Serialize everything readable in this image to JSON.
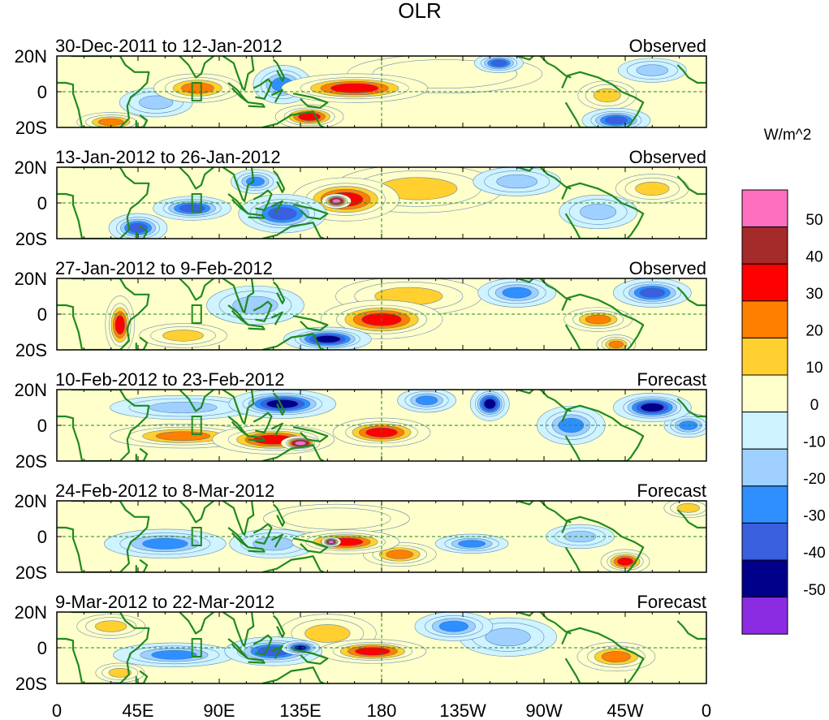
{
  "chart_data": {
    "type": "heatmap",
    "title": "OLR",
    "units": "W/m^2",
    "x_ticks": [
      "0",
      "45E",
      "90E",
      "135E",
      "180",
      "135W",
      "90W",
      "45W",
      "0"
    ],
    "x_range_deg_east": [
      0,
      360
    ],
    "y_ticks": [
      "20N",
      "0",
      "20S"
    ],
    "y_range_deg": [
      -20,
      20
    ],
    "colorbar": {
      "labels": [
        "50",
        "40",
        "30",
        "20",
        "10",
        "0",
        "-10",
        "-20",
        "-30",
        "-40",
        "-50"
      ],
      "levels": [
        50,
        40,
        30,
        20,
        10,
        0,
        -10,
        -20,
        -30,
        -40,
        -50
      ],
      "colors": [
        "#ff6fbf",
        "#a52a2a",
        "#ff0000",
        "#ff7f00",
        "#ffd030",
        "#ffffcc",
        "#cff3ff",
        "#9fd0ff",
        "#2f8fff",
        "#3a60e0",
        "#00008b",
        "#8b2be2"
      ]
    },
    "panels": [
      {
        "period": "30-Dec-2011 to 12-Jan-2012",
        "kind": "Observed",
        "anomalies": [
          {
            "lon": 78,
            "lat": 2,
            "rx": 18,
            "ry": 6,
            "v": 28
          },
          {
            "lon": 165,
            "lat": 2,
            "rx": 30,
            "ry": 6,
            "v": 32
          },
          {
            "lon": 140,
            "lat": -14,
            "rx": 14,
            "ry": 5,
            "v": 35
          },
          {
            "lon": 30,
            "lat": -17,
            "rx": 14,
            "ry": 4,
            "v": 28
          },
          {
            "lon": 305,
            "lat": -2,
            "rx": 12,
            "ry": 6,
            "v": 18
          },
          {
            "lon": 245,
            "lat": 16,
            "rx": 10,
            "ry": 4,
            "v": -35
          },
          {
            "lon": 125,
            "lat": 4,
            "rx": 12,
            "ry": 8,
            "v": -28
          },
          {
            "lon": 55,
            "lat": -6,
            "rx": 15,
            "ry": 6,
            "v": -15
          },
          {
            "lon": 310,
            "lat": -16,
            "rx": 14,
            "ry": 5,
            "v": -30
          },
          {
            "lon": 330,
            "lat": 12,
            "rx": 14,
            "ry": 5,
            "v": -18
          },
          {
            "lon": 215,
            "lat": 10,
            "rx": 40,
            "ry": 8,
            "v": 8
          }
        ]
      },
      {
        "period": "13-Jan-2012 to 26-Jan-2012",
        "kind": "Observed",
        "anomalies": [
          {
            "lon": 160,
            "lat": 2,
            "rx": 22,
            "ry": 9,
            "v": 34
          },
          {
            "lon": 155,
            "lat": 1,
            "rx": 6,
            "ry": 3,
            "v": 52
          },
          {
            "lon": 200,
            "lat": 8,
            "rx": 35,
            "ry": 10,
            "v": 10
          },
          {
            "lon": 75,
            "lat": -3,
            "rx": 16,
            "ry": 5,
            "v": -38
          },
          {
            "lon": 125,
            "lat": -6,
            "rx": 18,
            "ry": 8,
            "v": -35
          },
          {
            "lon": 45,
            "lat": -14,
            "rx": 12,
            "ry": 6,
            "v": -30
          },
          {
            "lon": 110,
            "lat": 12,
            "rx": 10,
            "ry": 5,
            "v": -25
          },
          {
            "lon": 300,
            "lat": -5,
            "rx": 16,
            "ry": 7,
            "v": -12
          },
          {
            "lon": 255,
            "lat": 12,
            "rx": 18,
            "ry": 6,
            "v": -14
          },
          {
            "lon": 330,
            "lat": 8,
            "rx": 15,
            "ry": 6,
            "v": 10
          }
        ]
      },
      {
        "period": "27-Jan-2012 to 9-Feb-2012",
        "kind": "Observed",
        "anomalies": [
          {
            "lon": 180,
            "lat": -3,
            "rx": 25,
            "ry": 8,
            "v": 30
          },
          {
            "lon": 195,
            "lat": 10,
            "rx": 30,
            "ry": 8,
            "v": 12
          },
          {
            "lon": 35,
            "lat": -6,
            "rx": 6,
            "ry": 12,
            "v": 30
          },
          {
            "lon": 150,
            "lat": -14,
            "rx": 18,
            "ry": 5,
            "v": -48
          },
          {
            "lon": 110,
            "lat": 5,
            "rx": 20,
            "ry": 8,
            "v": -14
          },
          {
            "lon": 255,
            "lat": 12,
            "rx": 16,
            "ry": 6,
            "v": -22
          },
          {
            "lon": 330,
            "lat": 12,
            "rx": 16,
            "ry": 6,
            "v": -32
          },
          {
            "lon": 300,
            "lat": -3,
            "rx": 14,
            "ry": 5,
            "v": 22
          },
          {
            "lon": 310,
            "lat": -17,
            "rx": 8,
            "ry": 4,
            "v": 25
          },
          {
            "lon": 70,
            "lat": -12,
            "rx": 18,
            "ry": 5,
            "v": 12
          }
        ]
      },
      {
        "period": "10-Feb-2012 to 23-Feb-2012",
        "kind": "Forecast",
        "anomalies": [
          {
            "lon": 120,
            "lat": -8,
            "rx": 25,
            "ry": 6,
            "v": 36
          },
          {
            "lon": 135,
            "lat": -10,
            "rx": 8,
            "ry": 3,
            "v": 52
          },
          {
            "lon": 180,
            "lat": -4,
            "rx": 20,
            "ry": 6,
            "v": 34
          },
          {
            "lon": 70,
            "lat": -6,
            "rx": 30,
            "ry": 5,
            "v": 22
          },
          {
            "lon": 125,
            "lat": 12,
            "rx": 22,
            "ry": 6,
            "v": -40
          },
          {
            "lon": 240,
            "lat": 12,
            "rx": 8,
            "ry": 7,
            "v": -45
          },
          {
            "lon": 205,
            "lat": 14,
            "rx": 12,
            "ry": 5,
            "v": -28
          },
          {
            "lon": 330,
            "lat": 10,
            "rx": 16,
            "ry": 6,
            "v": -40
          },
          {
            "lon": 285,
            "lat": 0,
            "rx": 14,
            "ry": 8,
            "v": -22
          },
          {
            "lon": 70,
            "lat": 10,
            "rx": 30,
            "ry": 5,
            "v": -15
          },
          {
            "lon": 350,
            "lat": 0,
            "rx": 10,
            "ry": 5,
            "v": -20
          }
        ]
      },
      {
        "period": "24-Feb-2012 to 8-Mar-2012",
        "kind": "Forecast",
        "anomalies": [
          {
            "lon": 160,
            "lat": -3,
            "rx": 22,
            "ry": 5,
            "v": 32
          },
          {
            "lon": 152,
            "lat": -3,
            "rx": 4,
            "ry": 2,
            "v": 52
          },
          {
            "lon": 190,
            "lat": -10,
            "rx": 15,
            "ry": 5,
            "v": 20
          },
          {
            "lon": 315,
            "lat": -14,
            "rx": 10,
            "ry": 5,
            "v": 35
          },
          {
            "lon": 60,
            "lat": -4,
            "rx": 25,
            "ry": 6,
            "v": -28
          },
          {
            "lon": 120,
            "lat": -4,
            "rx": 18,
            "ry": 6,
            "v": -18
          },
          {
            "lon": 230,
            "lat": -4,
            "rx": 15,
            "ry": 4,
            "v": -22
          },
          {
            "lon": 290,
            "lat": 0,
            "rx": 14,
            "ry": 5,
            "v": -15
          },
          {
            "lon": 155,
            "lat": 10,
            "rx": 30,
            "ry": 6,
            "v": 8
          },
          {
            "lon": 350,
            "lat": 16,
            "rx": 10,
            "ry": 4,
            "v": 12
          }
        ]
      },
      {
        "period": "9-Mar-2012 to 22-Mar-2012",
        "kind": "Forecast",
        "anomalies": [
          {
            "lon": 175,
            "lat": -2,
            "rx": 22,
            "ry": 5,
            "v": 34
          },
          {
            "lon": 150,
            "lat": 8,
            "rx": 20,
            "ry": 8,
            "v": 15
          },
          {
            "lon": 120,
            "lat": -2,
            "rx": 20,
            "ry": 6,
            "v": -34
          },
          {
            "lon": 135,
            "lat": 0,
            "rx": 8,
            "ry": 3,
            "v": -45
          },
          {
            "lon": 65,
            "lat": -4,
            "rx": 25,
            "ry": 5,
            "v": -28
          },
          {
            "lon": 220,
            "lat": 12,
            "rx": 16,
            "ry": 6,
            "v": -22
          },
          {
            "lon": 250,
            "lat": 6,
            "rx": 20,
            "ry": 8,
            "v": -12
          },
          {
            "lon": 310,
            "lat": -5,
            "rx": 16,
            "ry": 6,
            "v": 22
          },
          {
            "lon": 30,
            "lat": 12,
            "rx": 14,
            "ry": 5,
            "v": 12
          },
          {
            "lon": 35,
            "lat": -14,
            "rx": 10,
            "ry": 4,
            "v": 15
          }
        ]
      }
    ]
  }
}
